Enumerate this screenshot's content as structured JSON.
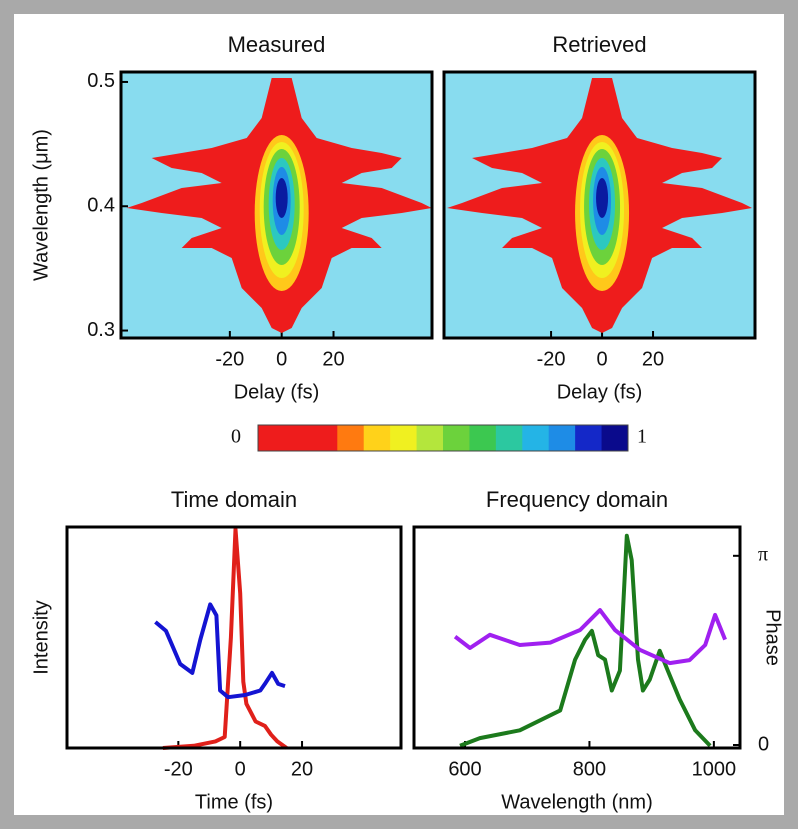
{
  "chart_data": [
    {
      "type": "contour-image",
      "title": "Measured",
      "xlabel": "Delay (fs)",
      "ylabel": "Wavelength (μm)",
      "xlim": [
        -62,
        58
      ],
      "ylim": [
        0.294,
        0.508
      ],
      "xticks": [
        -20,
        0,
        20
      ],
      "yticks": [
        0.3,
        0.4,
        0.5
      ],
      "background": "#88dcef"
    },
    {
      "type": "contour-image",
      "title": "Retrieved",
      "xlabel": "Delay (fs)",
      "xlim": [
        -62,
        60
      ],
      "ylim": [
        0.294,
        0.508
      ],
      "xticks": [
        -20,
        0,
        20
      ],
      "background": "#88dcef"
    },
    {
      "type": "colorbar",
      "ticks": [
        0,
        1
      ],
      "colors": [
        "#ee1c1c",
        "#ee1c1c",
        "#ee1c1c",
        "#ff7a10",
        "#ffd21a",
        "#f0f020",
        "#b4e63c",
        "#6cd23c",
        "#3cc850",
        "#2cc8a0",
        "#24b4e6",
        "#1e8ce6",
        "#1428c8",
        "#0a0a8c"
      ]
    },
    {
      "type": "line",
      "title": "Time domain",
      "xlabel": "Time (fs)",
      "ylabel": "Intensity",
      "xlim": [
        -56,
        52
      ],
      "ylim": [
        0,
        1
      ],
      "xticks": [
        -20,
        0,
        20
      ],
      "series": [
        {
          "color": "#e0201a",
          "x": [
            -25,
            -15,
            -8,
            -5,
            -3,
            -1.5,
            0,
            1,
            2,
            5,
            8,
            10,
            12,
            15
          ],
          "values": [
            0,
            0.01,
            0.03,
            0.05,
            0.5,
            0.99,
            0.7,
            0.3,
            0.2,
            0.12,
            0.1,
            0.06,
            0.03,
            0
          ]
        },
        {
          "color": "#1414d2",
          "x": [
            -27.4,
            -24,
            -19.4,
            -15.5,
            -12.9,
            -9.7,
            -7.7,
            -6.5,
            -3.9,
            1.6,
            6.5,
            8,
            10.3,
            12.3,
            14.5
          ],
          "values": [
            0.57,
            0.53,
            0.38,
            0.34,
            0.49,
            0.65,
            0.6,
            0.26,
            0.23,
            0.24,
            0.26,
            0.29,
            0.34,
            0.29,
            0.28
          ]
        }
      ]
    },
    {
      "type": "line",
      "title": "Frequency domain",
      "xlabel": "Wavelength (nm)",
      "y2label": "Phase",
      "xlim": [
        518,
        1042
      ],
      "ylim": [
        0,
        1
      ],
      "xticks": [
        600,
        800,
        1000
      ],
      "y2lim": [
        -0.05,
        3.62
      ],
      "y2ticks": [
        0,
        {
          "value": 3.14159,
          "label": "π"
        }
      ],
      "series": [
        {
          "color": "#1c7a1c",
          "x": [
            592,
            624,
            688,
            753,
            777,
            793,
            804,
            814,
            825,
            836,
            849,
            860,
            868,
            878,
            886,
            897,
            913,
            926,
            945,
            970,
            994
          ],
          "values": [
            0.01,
            0.045,
            0.08,
            0.17,
            0.4,
            0.49,
            0.53,
            0.42,
            0.4,
            0.26,
            0.35,
            0.96,
            0.85,
            0.4,
            0.26,
            0.31,
            0.44,
            0.35,
            0.22,
            0.08,
            0.01
          ]
        },
        {
          "color": "#a020f0",
          "axis": "y2",
          "x": [
            584,
            608,
            640,
            688,
            737,
            785,
            817,
            841,
            881,
            929,
            961,
            986,
            1002,
            1018
          ],
          "values": [
            1.8,
            1.61,
            1.83,
            1.66,
            1.7,
            1.91,
            2.24,
            1.91,
            1.58,
            1.36,
            1.41,
            1.66,
            2.16,
            1.75
          ]
        }
      ]
    }
  ]
}
